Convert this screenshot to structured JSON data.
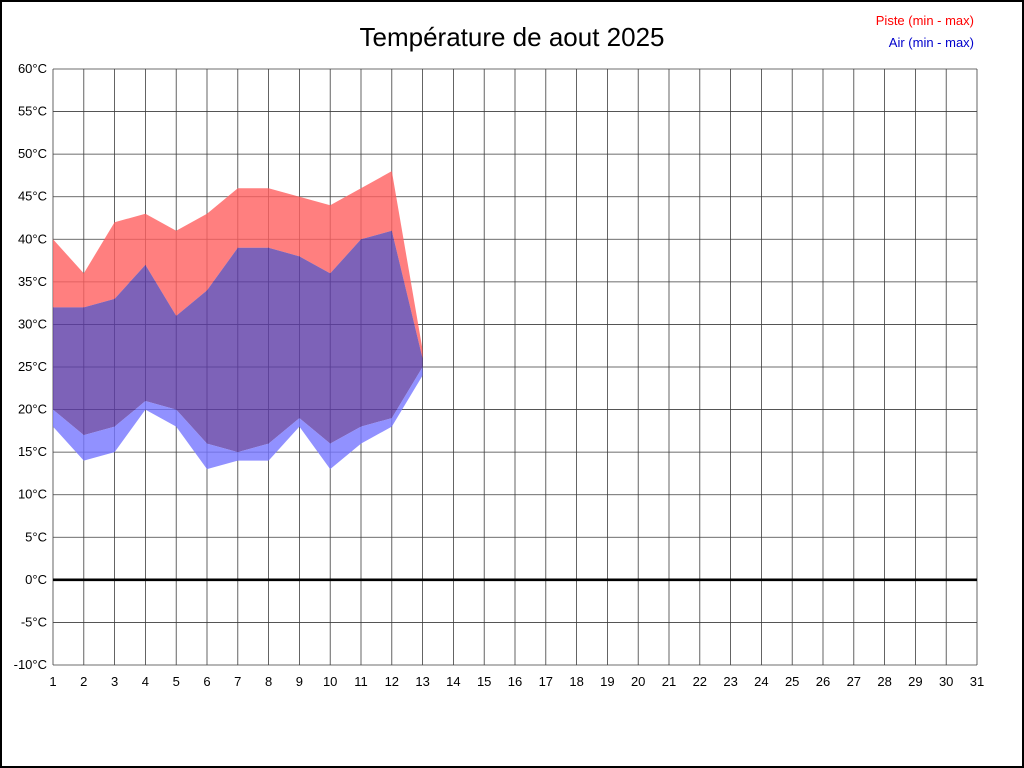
{
  "title": "Température de aout 2025",
  "legend": {
    "piste": "Piste (min - max)",
    "air": "Air (min - max)"
  },
  "colors": {
    "piste_band": "#ff5f5f",
    "overlap_band": "#5c3ba6",
    "air_band": "#7676ff",
    "band_opacity": 0.8,
    "legend_piste": "#ff0000",
    "legend_air": "#0000cc",
    "grid": "#3d3d3d",
    "zero_line": "#000000",
    "axis_text": "#000000"
  },
  "chart_data": {
    "type": "area",
    "title": "Température de aout 2025",
    "xlabel": "",
    "ylabel": "",
    "x": [
      1,
      2,
      3,
      4,
      5,
      6,
      7,
      8,
      9,
      10,
      11,
      12,
      13
    ],
    "series": [
      {
        "name": "Piste max",
        "values": [
          40,
          36,
          42,
          43,
          41,
          43,
          46,
          46,
          45,
          44,
          46,
          48,
          27
        ]
      },
      {
        "name": "Piste min",
        "values": [
          20,
          17,
          18,
          21,
          20,
          16,
          15,
          16,
          19,
          16,
          18,
          19,
          25
        ]
      },
      {
        "name": "Air max",
        "values": [
          32,
          32,
          33,
          37,
          31,
          34,
          39,
          39,
          38,
          36,
          40,
          41,
          26
        ]
      },
      {
        "name": "Air min",
        "values": [
          18,
          14,
          15,
          20,
          18,
          13,
          14,
          14,
          18,
          13,
          16,
          18,
          24
        ]
      }
    ],
    "xlim": [
      1,
      31
    ],
    "ylim": [
      -10,
      60
    ],
    "x_ticks": [
      1,
      2,
      3,
      4,
      5,
      6,
      7,
      8,
      9,
      10,
      11,
      12,
      13,
      14,
      15,
      16,
      17,
      18,
      19,
      20,
      21,
      22,
      23,
      24,
      25,
      26,
      27,
      28,
      29,
      30,
      31
    ],
    "y_ticks": [
      {
        "value": 60,
        "label": "60°C"
      },
      {
        "value": 55,
        "label": "55°C"
      },
      {
        "value": 50,
        "label": "50°C"
      },
      {
        "value": 45,
        "label": "45°C"
      },
      {
        "value": 40,
        "label": "40°C"
      },
      {
        "value": 35,
        "label": "35°C"
      },
      {
        "value": 30,
        "label": "30°C"
      },
      {
        "value": 25,
        "label": "25°C"
      },
      {
        "value": 20,
        "label": "20°C"
      },
      {
        "value": 15,
        "label": "15°C"
      },
      {
        "value": 10,
        "label": "10°C"
      },
      {
        "value": 5,
        "label": "5°C"
      },
      {
        "value": 0,
        "label": "0°C"
      },
      {
        "value": -5,
        "label": "-5°C"
      },
      {
        "value": -10,
        "label": "-10°C"
      }
    ],
    "grid": true,
    "zero_line": true,
    "legend_position": "top-right",
    "legend_entries": [
      "Piste (min - max)",
      "Air (min - max)"
    ]
  }
}
